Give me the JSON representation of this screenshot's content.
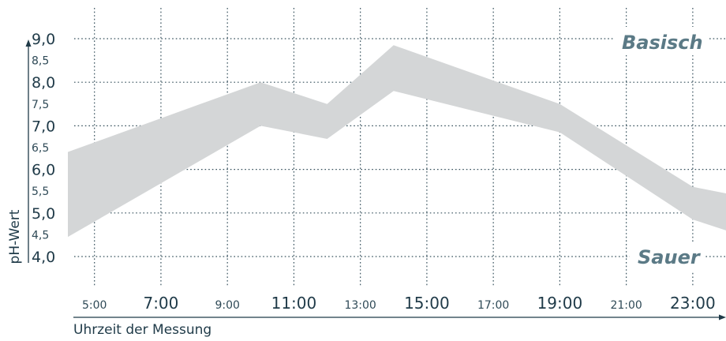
{
  "chart_data": {
    "type": "area",
    "title": "",
    "xlabel": "Uhrzeit der Messung",
    "ylabel": "pH-Wert",
    "ylim": [
      4.0,
      9.0
    ],
    "xlim": [
      4.2,
      24.0
    ],
    "grid": true,
    "colors": {
      "band": "#d4d6d7",
      "axis": "#1f3a48",
      "grid": "#36505c",
      "region_label": "#5b7a86"
    },
    "x_ticks": [
      {
        "value": 5,
        "label": "5:00",
        "major": false
      },
      {
        "value": 7,
        "label": "7:00",
        "major": true
      },
      {
        "value": 9,
        "label": "9:00",
        "major": false
      },
      {
        "value": 11,
        "label": "11:00",
        "major": true
      },
      {
        "value": 13,
        "label": "13:00",
        "major": false
      },
      {
        "value": 15,
        "label": "15:00",
        "major": true
      },
      {
        "value": 17,
        "label": "17:00",
        "major": false
      },
      {
        "value": 19,
        "label": "19:00",
        "major": true
      },
      {
        "value": 21,
        "label": "21:00",
        "major": false
      },
      {
        "value": 23,
        "label": "23:00",
        "major": true
      }
    ],
    "y_ticks": [
      {
        "value": 9.0,
        "label": "9,0",
        "major": true
      },
      {
        "value": 8.5,
        "label": "8,5",
        "major": false
      },
      {
        "value": 8.0,
        "label": "8,0",
        "major": true
      },
      {
        "value": 7.5,
        "label": "7,5",
        "major": false
      },
      {
        "value": 7.0,
        "label": "7,0",
        "major": true
      },
      {
        "value": 6.5,
        "label": "6,5",
        "major": false
      },
      {
        "value": 6.0,
        "label": "6,0",
        "major": true
      },
      {
        "value": 5.5,
        "label": "5,5",
        "major": false
      },
      {
        "value": 5.0,
        "label": "5,0",
        "major": true
      },
      {
        "value": 4.5,
        "label": "4,5",
        "major": false
      },
      {
        "value": 4.0,
        "label": "4,0",
        "major": true
      }
    ],
    "band": {
      "x": [
        4.2,
        10,
        12,
        14,
        19,
        23,
        24
      ],
      "upper": [
        6.4,
        8.0,
        7.5,
        8.85,
        7.5,
        5.6,
        5.45
      ],
      "lower": [
        4.45,
        7.0,
        6.7,
        7.8,
        6.85,
        4.85,
        4.6
      ]
    },
    "region_labels": {
      "top": "Basisch",
      "bottom": "Sauer"
    }
  }
}
